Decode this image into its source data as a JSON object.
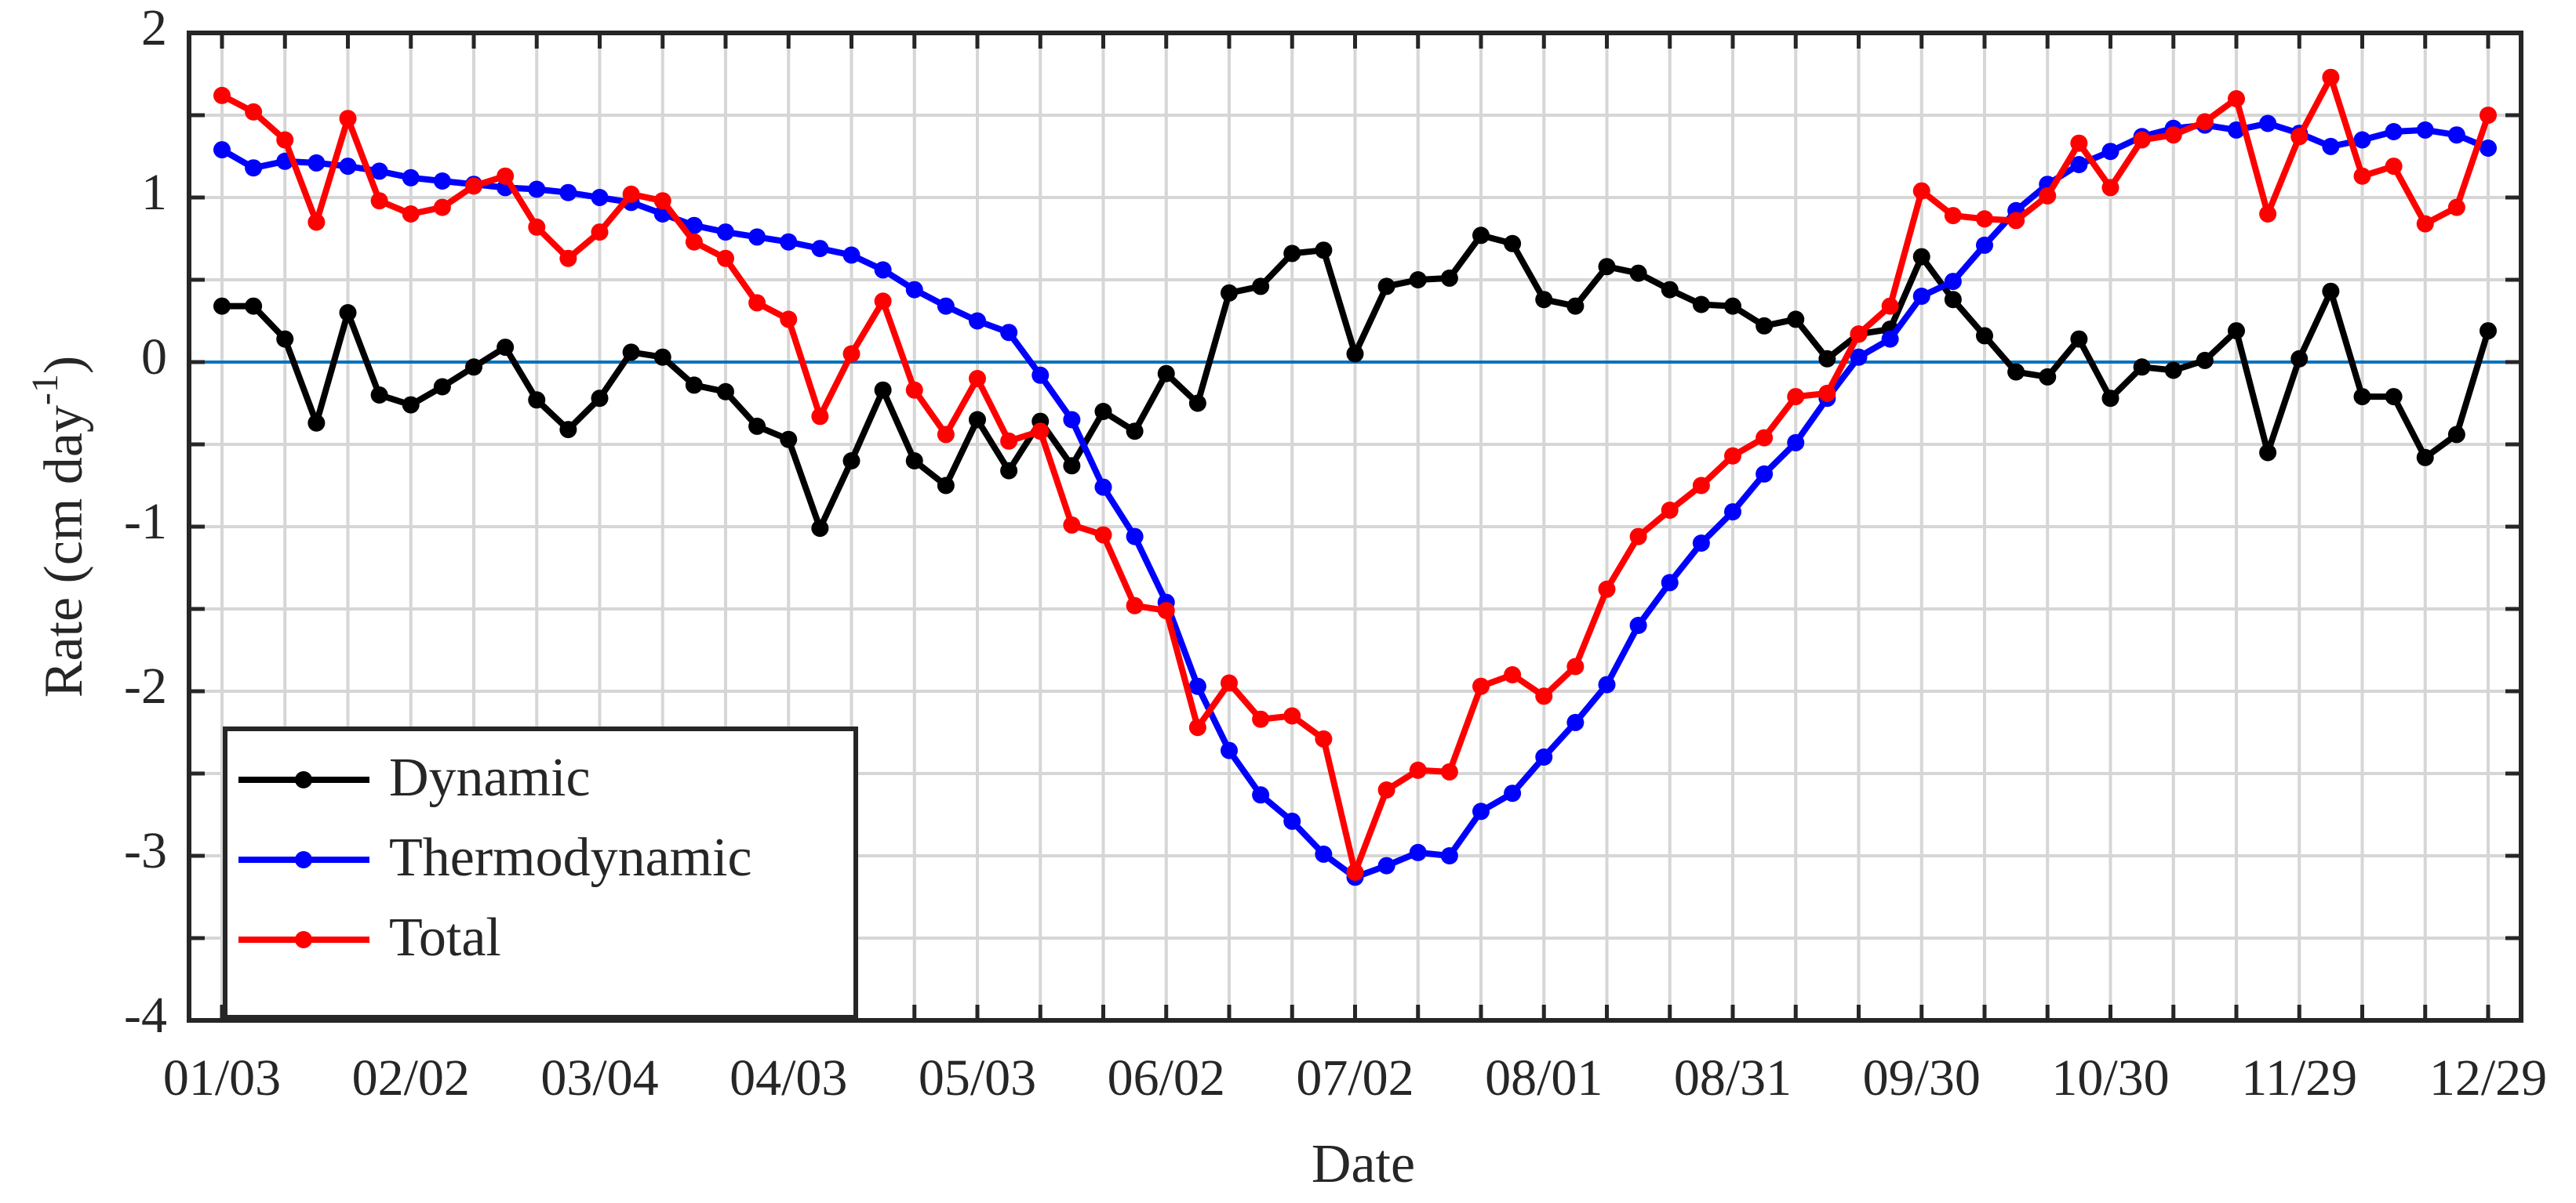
{
  "chart_data": {
    "type": "line",
    "xlabel": "Date",
    "ylabel": {
      "text": "Rate (cm day",
      "superscript": "-1",
      "suffix": ")"
    },
    "x": [
      "01/03",
      "01/08",
      "01/13",
      "01/18",
      "01/23",
      "01/28",
      "02/02",
      "02/07",
      "02/12",
      "02/17",
      "02/22",
      "02/27",
      "03/04",
      "03/09",
      "03/14",
      "03/19",
      "03/24",
      "03/29",
      "04/03",
      "04/08",
      "04/13",
      "04/18",
      "04/23",
      "04/28",
      "05/03",
      "05/08",
      "05/13",
      "05/18",
      "05/23",
      "05/28",
      "06/02",
      "06/07",
      "06/12",
      "06/17",
      "06/22",
      "06/27",
      "07/02",
      "07/07",
      "07/12",
      "07/17",
      "07/22",
      "07/27",
      "08/01",
      "08/06",
      "08/11",
      "08/16",
      "08/21",
      "08/26",
      "08/31",
      "09/05",
      "09/10",
      "09/15",
      "09/20",
      "09/25",
      "09/30",
      "10/05",
      "10/10",
      "10/15",
      "10/20",
      "10/25",
      "10/30",
      "11/04",
      "11/09",
      "11/14",
      "11/19",
      "11/24",
      "11/29",
      "12/04",
      "12/09",
      "12/14",
      "12/19",
      "12/24",
      "12/29"
    ],
    "xticks": [
      "01/03",
      "02/02",
      "03/04",
      "04/03",
      "05/03",
      "06/02",
      "07/02",
      "08/01",
      "08/31",
      "09/30",
      "10/30",
      "11/29",
      "12/29"
    ],
    "xminorticks": [
      "01/13",
      "01/23",
      "02/12",
      "02/22",
      "03/14",
      "03/24",
      "04/13",
      "04/23",
      "05/13",
      "05/23",
      "06/12",
      "06/22",
      "07/12",
      "07/22",
      "08/11",
      "08/21",
      "09/10",
      "09/20",
      "10/10",
      "10/20",
      "11/09",
      "11/19",
      "12/09",
      "12/19"
    ],
    "ylim": [
      -4,
      2
    ],
    "yticks": [
      -4,
      -3,
      -2,
      -1,
      0,
      1,
      2
    ],
    "yminorticks": [
      -3.5,
      -2.5,
      -1.5,
      -0.5,
      0.5,
      1.5
    ],
    "grid": true,
    "legend": "lower left",
    "hline": {
      "value": 0,
      "color": "#0072bd"
    },
    "series": [
      {
        "name": "Dynamic",
        "color": "#000000",
        "values": [
          0.34,
          0.34,
          0.14,
          -0.37,
          0.3,
          -0.2,
          -0.26,
          -0.15,
          -0.03,
          0.09,
          -0.23,
          -0.41,
          -0.22,
          0.06,
          0.03,
          -0.14,
          -0.18,
          -0.39,
          -0.47,
          -1.01,
          -0.6,
          -0.17,
          -0.6,
          -0.75,
          -0.35,
          -0.66,
          -0.36,
          -0.63,
          -0.3,
          -0.42,
          -0.07,
          -0.25,
          0.42,
          0.46,
          0.66,
          0.68,
          0.05,
          0.46,
          0.5,
          0.51,
          0.77,
          0.72,
          0.38,
          0.34,
          0.58,
          0.54,
          0.44,
          0.35,
          0.34,
          0.22,
          0.26,
          0.02,
          0.17,
          0.2,
          0.64,
          0.38,
          0.16,
          -0.06,
          -0.09,
          0.14,
          -0.22,
          -0.03,
          -0.05,
          0.01,
          0.19,
          -0.55,
          0.02,
          0.43,
          -0.21,
          -0.21,
          -0.58,
          -0.44,
          0.19
        ]
      },
      {
        "name": "Thermodynamic",
        "color": "#0000ff",
        "values": [
          1.29,
          1.18,
          1.22,
          1.21,
          1.19,
          1.16,
          1.12,
          1.1,
          1.08,
          1.06,
          1.05,
          1.03,
          1.0,
          0.97,
          0.9,
          0.83,
          0.79,
          0.76,
          0.73,
          0.69,
          0.65,
          0.56,
          0.44,
          0.34,
          0.25,
          0.18,
          -0.08,
          -0.35,
          -0.76,
          -1.06,
          -1.46,
          -1.97,
          -2.36,
          -2.63,
          -2.79,
          -2.99,
          -3.13,
          -3.06,
          -2.98,
          -3.0,
          -2.73,
          -2.62,
          -2.4,
          -2.19,
          -1.96,
          -1.6,
          -1.34,
          -1.1,
          -0.91,
          -0.68,
          -0.49,
          -0.22,
          0.03,
          0.14,
          0.4,
          0.49,
          0.71,
          0.92,
          1.08,
          1.2,
          1.28,
          1.37,
          1.42,
          1.44,
          1.41,
          1.45,
          1.39,
          1.31,
          1.35,
          1.4,
          1.41,
          1.38,
          1.3
        ]
      },
      {
        "name": "Total",
        "color": "#ff0000",
        "values": [
          1.62,
          1.52,
          1.35,
          0.85,
          1.48,
          0.98,
          0.9,
          0.94,
          1.07,
          1.13,
          0.82,
          0.63,
          0.79,
          1.02,
          0.98,
          0.73,
          0.63,
          0.36,
          0.26,
          -0.33,
          0.05,
          0.37,
          -0.17,
          -0.44,
          -0.1,
          -0.48,
          -0.42,
          -0.99,
          -1.05,
          -1.48,
          -1.51,
          -2.22,
          -1.95,
          -2.17,
          -2.15,
          -2.29,
          -3.1,
          -2.6,
          -2.48,
          -2.49,
          -1.97,
          -1.9,
          -2.03,
          -1.85,
          -1.38,
          -1.06,
          -0.9,
          -0.75,
          -0.57,
          -0.46,
          -0.21,
          -0.19,
          0.17,
          0.34,
          1.04,
          0.89,
          0.87,
          0.86,
          1.01,
          1.33,
          1.06,
          1.35,
          1.38,
          1.46,
          1.6,
          0.9,
          1.37,
          1.73,
          1.13,
          1.19,
          0.84,
          0.94,
          1.5
        ]
      }
    ]
  }
}
